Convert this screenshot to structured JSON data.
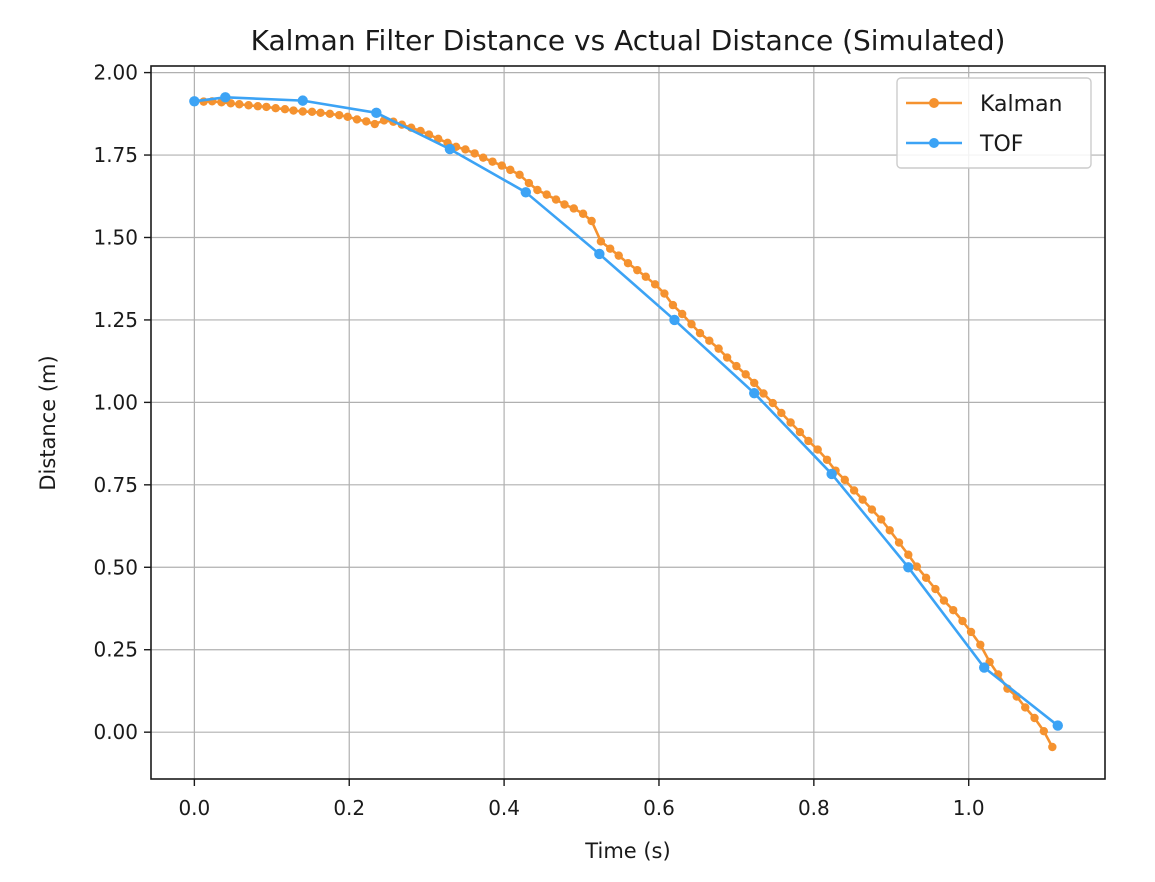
{
  "chart_data": {
    "type": "line",
    "title": "Kalman Filter Distance vs Actual Distance (Simulated)",
    "xlabel": "Time (s)",
    "ylabel": "Distance (m)",
    "xlim": [
      -0.056,
      1.176
    ],
    "ylim": [
      -0.142,
      2.02
    ],
    "xticks": [
      0.0,
      0.2,
      0.4,
      0.6,
      0.8,
      1.0
    ],
    "xtick_labels": [
      "0.0",
      "0.2",
      "0.4",
      "0.6",
      "0.8",
      "1.0"
    ],
    "yticks": [
      0.0,
      0.25,
      0.5,
      0.75,
      1.0,
      1.25,
      1.5,
      1.75,
      2.0
    ],
    "ytick_labels": [
      "0.00",
      "0.25",
      "0.50",
      "0.75",
      "1.00",
      "1.25",
      "1.50",
      "1.75",
      "2.00"
    ],
    "grid": true,
    "legend_position": "top-right",
    "series": [
      {
        "name": "Kalman",
        "color": "#f5922f",
        "marker": "circle",
        "points": [
          [
            0.0,
            1.915
          ],
          [
            0.012,
            1.912
          ],
          [
            0.023,
            1.913
          ],
          [
            0.035,
            1.91
          ],
          [
            0.047,
            1.907
          ],
          [
            0.058,
            1.904
          ],
          [
            0.07,
            1.901
          ],
          [
            0.082,
            1.898
          ],
          [
            0.093,
            1.896
          ],
          [
            0.105,
            1.892
          ],
          [
            0.117,
            1.889
          ],
          [
            0.128,
            1.885
          ],
          [
            0.14,
            1.882
          ],
          [
            0.152,
            1.881
          ],
          [
            0.163,
            1.878
          ],
          [
            0.175,
            1.875
          ],
          [
            0.187,
            1.871
          ],
          [
            0.198,
            1.866
          ],
          [
            0.21,
            1.858
          ],
          [
            0.222,
            1.852
          ],
          [
            0.233,
            1.844
          ],
          [
            0.245,
            1.855
          ],
          [
            0.257,
            1.851
          ],
          [
            0.268,
            1.842
          ],
          [
            0.28,
            1.833
          ],
          [
            0.292,
            1.823
          ],
          [
            0.303,
            1.812
          ],
          [
            0.315,
            1.799
          ],
          [
            0.327,
            1.787
          ],
          [
            0.338,
            1.775
          ],
          [
            0.35,
            1.767
          ],
          [
            0.362,
            1.755
          ],
          [
            0.373,
            1.742
          ],
          [
            0.385,
            1.73
          ],
          [
            0.397,
            1.718
          ],
          [
            0.408,
            1.705
          ],
          [
            0.42,
            1.69
          ],
          [
            0.432,
            1.665
          ],
          [
            0.443,
            1.644
          ],
          [
            0.455,
            1.63
          ],
          [
            0.467,
            1.615
          ],
          [
            0.478,
            1.6
          ],
          [
            0.49,
            1.588
          ],
          [
            0.502,
            1.572
          ],
          [
            0.513,
            1.55
          ],
          [
            0.525,
            1.488
          ],
          [
            0.537,
            1.466
          ],
          [
            0.548,
            1.445
          ],
          [
            0.56,
            1.422
          ],
          [
            0.572,
            1.401
          ],
          [
            0.583,
            1.381
          ],
          [
            0.595,
            1.358
          ],
          [
            0.607,
            1.33
          ],
          [
            0.618,
            1.295
          ],
          [
            0.63,
            1.268
          ],
          [
            0.642,
            1.237
          ],
          [
            0.653,
            1.21
          ],
          [
            0.665,
            1.187
          ],
          [
            0.677,
            1.163
          ],
          [
            0.688,
            1.136
          ],
          [
            0.7,
            1.11
          ],
          [
            0.712,
            1.085
          ],
          [
            0.723,
            1.059
          ],
          [
            0.735,
            1.027
          ],
          [
            0.747,
            0.998
          ],
          [
            0.758,
            0.968
          ],
          [
            0.77,
            0.939
          ],
          [
            0.782,
            0.91
          ],
          [
            0.793,
            0.883
          ],
          [
            0.805,
            0.857
          ],
          [
            0.817,
            0.826
          ],
          [
            0.828,
            0.793
          ],
          [
            0.84,
            0.765
          ],
          [
            0.852,
            0.733
          ],
          [
            0.863,
            0.705
          ],
          [
            0.875,
            0.675
          ],
          [
            0.887,
            0.645
          ],
          [
            0.898,
            0.612
          ],
          [
            0.91,
            0.575
          ],
          [
            0.922,
            0.538
          ],
          [
            0.933,
            0.502
          ],
          [
            0.945,
            0.468
          ],
          [
            0.957,
            0.434
          ],
          [
            0.968,
            0.399
          ],
          [
            0.98,
            0.37
          ],
          [
            0.992,
            0.337
          ],
          [
            1.003,
            0.304
          ],
          [
            1.015,
            0.265
          ],
          [
            1.027,
            0.213
          ],
          [
            1.038,
            0.175
          ],
          [
            1.05,
            0.132
          ],
          [
            1.062,
            0.108
          ],
          [
            1.073,
            0.075
          ],
          [
            1.085,
            0.043
          ],
          [
            1.097,
            0.003
          ],
          [
            1.108,
            -0.045
          ]
        ]
      },
      {
        "name": "TOF",
        "color": "#3ca3f5",
        "marker": "circle",
        "points": [
          [
            0.0,
            1.913
          ],
          [
            0.04,
            1.925
          ],
          [
            0.14,
            1.915
          ],
          [
            0.235,
            1.878
          ],
          [
            0.33,
            1.768
          ],
          [
            0.428,
            1.637
          ],
          [
            0.523,
            1.45
          ],
          [
            0.62,
            1.25
          ],
          [
            0.723,
            1.028
          ],
          [
            0.823,
            0.783
          ],
          [
            0.922,
            0.5
          ],
          [
            1.02,
            0.196
          ],
          [
            1.115,
            0.02
          ]
        ]
      }
    ]
  }
}
